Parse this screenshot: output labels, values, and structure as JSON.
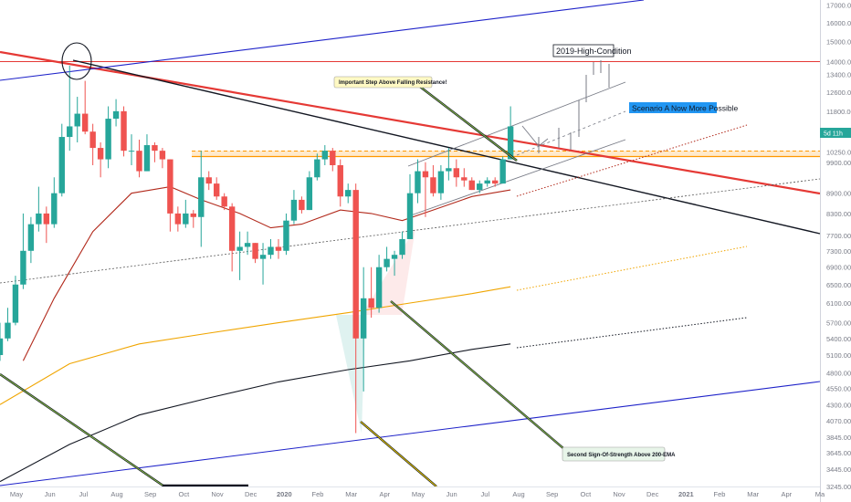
{
  "chart_data": {
    "type": "candlestick",
    "interval": "weekly",
    "price_axis": {
      "scale": "log",
      "ticks": [
        "17000.00",
        "16000.00",
        "15000.00",
        "14000.00",
        "13400.00",
        "12600.00",
        "11800.00",
        "10250.00",
        "9900.00",
        "8900.00",
        "8300.00",
        "7700.00",
        "7300.00",
        "6900.00",
        "6500.00",
        "6100.00",
        "5700.00",
        "5400.00",
        "5100.00",
        "4800.00",
        "4550.00",
        "4300.00",
        "4070.00",
        "3845.00",
        "3645.00",
        "3445.00",
        "3245.00"
      ],
      "last_price_badge": "5d 11h",
      "ylim": [
        3245,
        17300
      ]
    },
    "time_axis": {
      "ticks": [
        "May",
        "Jun",
        "Jul",
        "Aug",
        "Sep",
        "Oct",
        "Nov",
        "Dec",
        "2020",
        "Feb",
        "Mar",
        "Apr",
        "May",
        "Jun",
        "Jul",
        "Aug",
        "Sep",
        "Oct",
        "Nov",
        "Dec",
        "2021",
        "Feb",
        "Mar",
        "Apr",
        "Ma"
      ],
      "range": [
        "2019-04-22",
        "2021-05-03"
      ]
    },
    "candles": [
      {
        "t": "2019-04-22",
        "o": 5100,
        "h": 5700,
        "l": 5000,
        "c": 5400
      },
      {
        "t": "2019-04-29",
        "o": 5400,
        "h": 6000,
        "l": 5350,
        "c": 5700
      },
      {
        "t": "2019-05-06",
        "o": 5700,
        "h": 6700,
        "l": 5650,
        "c": 6500
      },
      {
        "t": "2019-05-13",
        "o": 6500,
        "h": 8300,
        "l": 6400,
        "c": 7300
      },
      {
        "t": "2019-05-20",
        "o": 7300,
        "h": 8200,
        "l": 7000,
        "c": 8000
      },
      {
        "t": "2019-05-27",
        "o": 8000,
        "h": 9100,
        "l": 7800,
        "c": 8300
      },
      {
        "t": "2019-06-03",
        "o": 8300,
        "h": 8500,
        "l": 7500,
        "c": 8000
      },
      {
        "t": "2019-06-10",
        "o": 8000,
        "h": 9400,
        "l": 7900,
        "c": 8900
      },
      {
        "t": "2019-06-17",
        "o": 8900,
        "h": 11300,
        "l": 8800,
        "c": 10800
      },
      {
        "t": "2019-06-24",
        "o": 10800,
        "h": 13800,
        "l": 10300,
        "c": 11200
      },
      {
        "t": "2019-07-01",
        "o": 11200,
        "h": 12400,
        "l": 10600,
        "c": 11700
      },
      {
        "t": "2019-07-08",
        "o": 11700,
        "h": 13100,
        "l": 10900,
        "c": 11000
      },
      {
        "t": "2019-07-15",
        "o": 11000,
        "h": 11300,
        "l": 9800,
        "c": 10400
      },
      {
        "t": "2019-07-22",
        "o": 10400,
        "h": 10600,
        "l": 9400,
        "c": 10000
      },
      {
        "t": "2019-07-29",
        "o": 10000,
        "h": 12000,
        "l": 9700,
        "c": 11500
      },
      {
        "t": "2019-08-05",
        "o": 11500,
        "h": 12300,
        "l": 11200,
        "c": 11800
      },
      {
        "t": "2019-08-12",
        "o": 11800,
        "h": 12000,
        "l": 10100,
        "c": 10300
      },
      {
        "t": "2019-08-19",
        "o": 10300,
        "h": 10900,
        "l": 9800,
        "c": 10300
      },
      {
        "t": "2019-08-26",
        "o": 10300,
        "h": 10700,
        "l": 9400,
        "c": 9600
      },
      {
        "t": "2019-09-02",
        "o": 9600,
        "h": 10900,
        "l": 9600,
        "c": 10500
      },
      {
        "t": "2019-09-09",
        "o": 10500,
        "h": 10600,
        "l": 9900,
        "c": 10300
      },
      {
        "t": "2019-09-16",
        "o": 10300,
        "h": 10400,
        "l": 9700,
        "c": 10000
      },
      {
        "t": "2019-09-23",
        "o": 10000,
        "h": 10000,
        "l": 7800,
        "c": 8300
      },
      {
        "t": "2019-09-30",
        "o": 8300,
        "h": 8500,
        "l": 7800,
        "c": 8000
      },
      {
        "t": "2019-10-07",
        "o": 8000,
        "h": 8700,
        "l": 7900,
        "c": 8300
      },
      {
        "t": "2019-10-14",
        "o": 8300,
        "h": 8400,
        "l": 7900,
        "c": 8200
      },
      {
        "t": "2019-10-21",
        "o": 8200,
        "h": 10300,
        "l": 7400,
        "c": 9400
      },
      {
        "t": "2019-10-28",
        "o": 9400,
        "h": 9600,
        "l": 9000,
        "c": 9200
      },
      {
        "t": "2019-11-04",
        "o": 9200,
        "h": 9400,
        "l": 8700,
        "c": 8800
      },
      {
        "t": "2019-11-11",
        "o": 8800,
        "h": 8900,
        "l": 8400,
        "c": 8500
      },
      {
        "t": "2019-11-18",
        "o": 8500,
        "h": 8600,
        "l": 6800,
        "c": 7300
      },
      {
        "t": "2019-11-25",
        "o": 7300,
        "h": 7800,
        "l": 6600,
        "c": 7400
      },
      {
        "t": "2019-12-02",
        "o": 7400,
        "h": 7800,
        "l": 7200,
        "c": 7500
      },
      {
        "t": "2019-12-09",
        "o": 7500,
        "h": 7500,
        "l": 7000,
        "c": 7100
      },
      {
        "t": "2019-12-16",
        "o": 7100,
        "h": 7500,
        "l": 6500,
        "c": 7200
      },
      {
        "t": "2019-12-23",
        "o": 7200,
        "h": 7600,
        "l": 7100,
        "c": 7400
      },
      {
        "t": "2019-12-30",
        "o": 7400,
        "h": 7600,
        "l": 7100,
        "c": 7300
      },
      {
        "t": "2020-01-06",
        "o": 7300,
        "h": 8300,
        "l": 7200,
        "c": 8100
      },
      {
        "t": "2020-01-13",
        "o": 8100,
        "h": 9000,
        "l": 8000,
        "c": 8700
      },
      {
        "t": "2020-01-20",
        "o": 8700,
        "h": 8800,
        "l": 8300,
        "c": 8400
      },
      {
        "t": "2020-01-27",
        "o": 8400,
        "h": 9600,
        "l": 8400,
        "c": 9400
      },
      {
        "t": "2020-02-03",
        "o": 9400,
        "h": 10200,
        "l": 9300,
        "c": 10000
      },
      {
        "t": "2020-02-10",
        "o": 10000,
        "h": 10500,
        "l": 9800,
        "c": 10300
      },
      {
        "t": "2020-02-17",
        "o": 10300,
        "h": 10400,
        "l": 9600,
        "c": 9800
      },
      {
        "t": "2020-02-24",
        "o": 9800,
        "h": 10000,
        "l": 8500,
        "c": 8800
      },
      {
        "t": "2020-03-02",
        "o": 8800,
        "h": 9200,
        "l": 8600,
        "c": 9000
      },
      {
        "t": "2020-03-09",
        "o": 9000,
        "h": 9200,
        "l": 3900,
        "c": 5400
      },
      {
        "t": "2020-03-16",
        "o": 5400,
        "h": 6900,
        "l": 4500,
        "c": 6200
      },
      {
        "t": "2020-03-23",
        "o": 6200,
        "h": 6900,
        "l": 5800,
        "c": 6000
      },
      {
        "t": "2020-03-30",
        "o": 6000,
        "h": 7200,
        "l": 5900,
        "c": 6900
      },
      {
        "t": "2020-04-06",
        "o": 6900,
        "h": 7400,
        "l": 6800,
        "c": 7100
      },
      {
        "t": "2020-04-13",
        "o": 7100,
        "h": 7300,
        "l": 6700,
        "c": 7200
      },
      {
        "t": "2020-04-20",
        "o": 7200,
        "h": 7800,
        "l": 7100,
        "c": 7600
      },
      {
        "t": "2020-04-27",
        "o": 7600,
        "h": 9500,
        "l": 7600,
        "c": 8900
      },
      {
        "t": "2020-05-04",
        "o": 8900,
        "h": 10000,
        "l": 8600,
        "c": 9600
      },
      {
        "t": "2020-05-11",
        "o": 9600,
        "h": 9900,
        "l": 8200,
        "c": 9400
      },
      {
        "t": "2020-05-18",
        "o": 9400,
        "h": 9800,
        "l": 8800,
        "c": 8900
      },
      {
        "t": "2020-05-25",
        "o": 8900,
        "h": 9800,
        "l": 8700,
        "c": 9600
      },
      {
        "t": "2020-06-01",
        "o": 9600,
        "h": 10400,
        "l": 9300,
        "c": 9700
      },
      {
        "t": "2020-06-08",
        "o": 9700,
        "h": 10000,
        "l": 9100,
        "c": 9400
      },
      {
        "t": "2020-06-15",
        "o": 9400,
        "h": 9700,
        "l": 9100,
        "c": 9300
      },
      {
        "t": "2020-06-22",
        "o": 9300,
        "h": 9400,
        "l": 9000,
        "c": 9000
      },
      {
        "t": "2020-06-29",
        "o": 9000,
        "h": 9300,
        "l": 8900,
        "c": 9200
      },
      {
        "t": "2020-07-06",
        "o": 9200,
        "h": 9400,
        "l": 9100,
        "c": 9300
      },
      {
        "t": "2020-07-13",
        "o": 9300,
        "h": 9400,
        "l": 9100,
        "c": 9200
      },
      {
        "t": "2020-07-20",
        "o": 9200,
        "h": 10100,
        "l": 9200,
        "c": 10000
      },
      {
        "t": "2020-07-27",
        "o": 10000,
        "h": 12000,
        "l": 10000,
        "c": 11200
      }
    ],
    "lines": [
      {
        "name": "ema-50-red",
        "color": "#b22a1c",
        "points": [
          [
            "2019-05-13",
            5000
          ],
          [
            "2019-06-10",
            6200
          ],
          [
            "2019-07-15",
            7800
          ],
          [
            "2019-08-19",
            8900
          ],
          [
            "2019-09-23",
            9100
          ],
          [
            "2019-10-21",
            8700
          ],
          [
            "2019-11-25",
            8300
          ],
          [
            "2019-12-23",
            7900
          ],
          [
            "2020-01-20",
            8000
          ],
          [
            "2020-02-24",
            8400
          ],
          [
            "2020-03-23",
            8300
          ],
          [
            "2020-04-20",
            8100
          ],
          [
            "2020-05-18",
            8400
          ],
          [
            "2020-06-22",
            8800
          ],
          [
            "2020-07-27",
            9000
          ]
        ]
      },
      {
        "name": "ema-200-orange",
        "color": "#f0a500",
        "points": [
          [
            "2019-04-22",
            4300
          ],
          [
            "2019-06-24",
            4950
          ],
          [
            "2019-08-26",
            5300
          ],
          [
            "2019-10-28",
            "5500"
          ],
          [
            "2019-12-30",
            5700
          ],
          [
            "2020-03-02",
            5900
          ],
          [
            "2020-04-27",
            6100
          ],
          [
            "2020-06-22",
            6300
          ],
          [
            "2020-07-27",
            6450
          ]
        ]
      },
      {
        "name": "ema-200-black",
        "color": "#131722",
        "points": [
          [
            "2019-04-22",
            3300
          ],
          [
            "2019-06-24",
            3750
          ],
          [
            "2019-08-26",
            4150
          ],
          [
            "2019-10-28",
            4400
          ],
          [
            "2019-12-30",
            4650
          ],
          [
            "2020-03-02",
            4850
          ],
          [
            "2020-04-27",
            5000
          ],
          [
            "2020-06-22",
            5200
          ],
          [
            "2020-07-27",
            5300
          ]
        ]
      }
    ],
    "annotations": [
      "2019-High-Condition",
      "Scenario A Now More Possible",
      "Important Step Above Falling Resistance!",
      "Second Sign-Of-Strength Above 200-EMA"
    ],
    "grid": false,
    "title": "",
    "xlabel": "",
    "ylabel": ""
  }
}
